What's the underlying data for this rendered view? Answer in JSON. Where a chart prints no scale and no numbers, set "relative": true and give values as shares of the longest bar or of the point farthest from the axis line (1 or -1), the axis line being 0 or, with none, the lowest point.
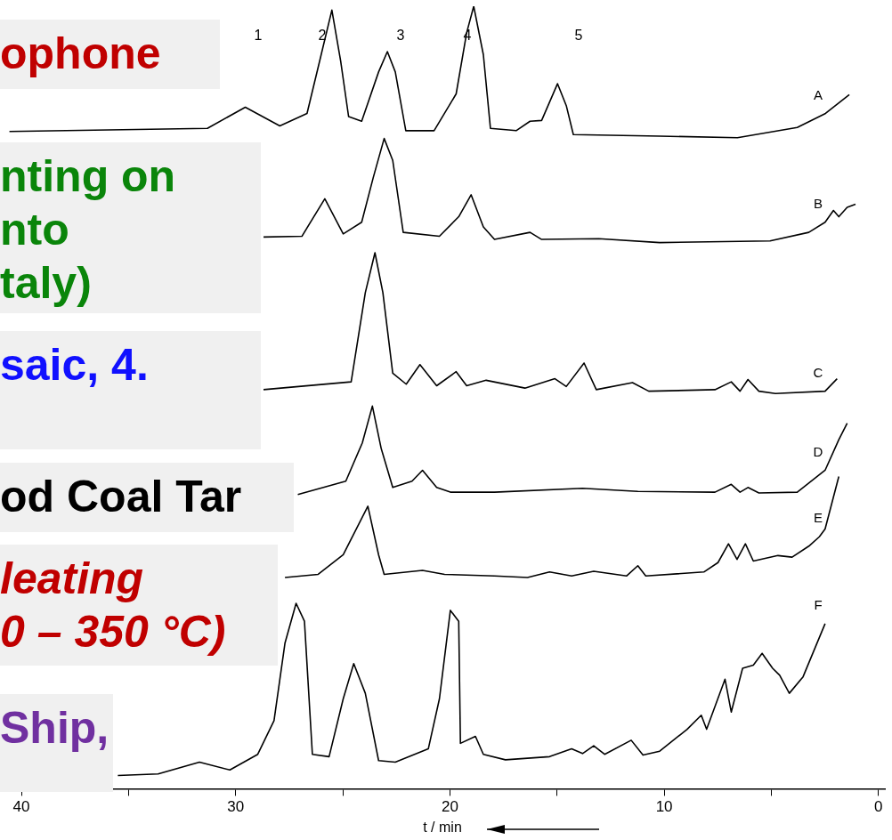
{
  "chart_data": {
    "type": "line",
    "relative": true,
    "xlabel": "t / min",
    "xlim": [
      41,
      -0.3
    ],
    "xticks": [
      40,
      {
        "value": 35,
        "label": null
      },
      30,
      {
        "value": 25,
        "label": null
      },
      20,
      {
        "value": 15,
        "label": null
      },
      10,
      {
        "value": 5,
        "label": null
      },
      0
    ],
    "grid": false,
    "legend": false,
    "marker": "none",
    "line_style": "solid",
    "annotations": [
      "ophone",
      "nting on\nnto\ntaly)",
      "saic, 4.",
      "od Coal Tar",
      "leating\n0 – 350 °C)",
      "Ship,",
      "1",
      "2",
      "3",
      "4",
      "5"
    ],
    "series": [
      {
        "name": "A",
        "color": "#000000",
        "x": [
          40.56,
          31.32,
          29.55,
          27.94,
          26.67,
          26.01,
          25.51,
          25.1,
          24.73,
          24.12,
          23.33,
          22.92,
          22.55,
          22.06,
          20.74,
          19.71,
          19.22,
          18.89,
          18.44,
          18.11,
          16.91,
          16.26,
          15.72,
          14.98,
          14.57,
          14.24,
          10.21,
          6.58,
          3.79,
          2.47,
          1.36
        ],
        "values": [
          0.84,
          0.844,
          0.871,
          0.847,
          0.863,
          0.938,
          0.995,
          0.93,
          0.859,
          0.853,
          0.916,
          0.942,
          0.916,
          0.841,
          0.841,
          0.888,
          0.966,
          1.0,
          0.938,
          0.844,
          0.841,
          0.853,
          0.854,
          0.901,
          0.873,
          0.836,
          0.834,
          0.832,
          0.845,
          0.863,
          0.887
        ]
      },
      {
        "name": "B",
        "color": "#000000",
        "x": [
          28.7,
          26.91,
          25.84,
          24.98,
          24.12,
          23.58,
          23.07,
          22.67,
          22.18,
          20.49,
          19.59,
          19.01,
          18.44,
          17.92,
          16.26,
          15.72,
          13.05,
          10.21,
          5.06,
          3.25,
          2.49,
          2.1,
          1.85,
          1.46,
          1.07
        ],
        "values": [
          0.705,
          0.706,
          0.754,
          0.709,
          0.724,
          0.781,
          0.831,
          0.803,
          0.711,
          0.706,
          0.731,
          0.759,
          0.718,
          0.702,
          0.711,
          0.702,
          0.703,
          0.698,
          0.7,
          0.711,
          0.724,
          0.739,
          0.731,
          0.743,
          0.747
        ]
      },
      {
        "name": "C",
        "color": "#000000",
        "x": [
          28.7,
          24.61,
          23.95,
          23.5,
          23.13,
          22.67,
          22.04,
          21.4,
          20.62,
          19.71,
          19.22,
          18.31,
          16.5,
          15.1,
          14.57,
          13.74,
          13.17,
          11.48,
          10.72,
          7.63,
          6.87,
          6.46,
          6.09,
          5.58,
          4.81,
          2.49,
          1.93
        ],
        "values": [
          0.51,
          0.52,
          0.634,
          0.685,
          0.634,
          0.531,
          0.517,
          0.542,
          0.515,
          0.533,
          0.515,
          0.522,
          0.512,
          0.524,
          0.514,
          0.544,
          0.51,
          0.519,
          0.508,
          0.51,
          0.52,
          0.508,
          0.523,
          0.508,
          0.505,
          0.508,
          0.524
        ]
      },
      {
        "name": "D",
        "color": "#000000",
        "x": [
          27.1,
          24.86,
          24.09,
          23.62,
          23.21,
          22.67,
          21.77,
          21.28,
          20.62,
          19.98,
          17.92,
          13.81,
          11.23,
          7.63,
          6.87,
          6.46,
          6.09,
          5.58,
          3.79,
          2.49,
          1.85,
          1.46
        ],
        "values": [
          0.376,
          0.393,
          0.442,
          0.489,
          0.435,
          0.385,
          0.393,
          0.407,
          0.385,
          0.379,
          0.379,
          0.384,
          0.38,
          0.379,
          0.389,
          0.379,
          0.385,
          0.378,
          0.379,
          0.407,
          0.446,
          0.467
        ]
      },
      {
        "name": "E",
        "color": "#000000",
        "x": [
          27.7,
          26.15,
          24.98,
          23.83,
          23.33,
          23.07,
          21.28,
          20.25,
          17.92,
          16.38,
          15.35,
          14.32,
          13.29,
          11.75,
          11.23,
          10.86,
          8.15,
          7.49,
          7.0,
          6.6,
          6.21,
          5.84,
          4.69,
          4.03,
          3.25,
          2.76,
          2.49,
          1.85
        ],
        "values": [
          0.27,
          0.274,
          0.299,
          0.361,
          0.299,
          0.274,
          0.279,
          0.274,
          0.272,
          0.27,
          0.277,
          0.272,
          0.278,
          0.272,
          0.285,
          0.272,
          0.277,
          0.289,
          0.313,
          0.293,
          0.313,
          0.291,
          0.298,
          0.296,
          0.31,
          0.322,
          0.332,
          0.399
        ]
      },
      {
        "name": "F",
        "color": "#000000",
        "x": [
          35.5,
          33.62,
          31.69,
          30.27,
          28.97,
          28.21,
          27.7,
          27.18,
          26.79,
          26.42,
          25.64,
          24.98,
          24.49,
          23.95,
          23.33,
          22.55,
          21.01,
          20.49,
          19.98,
          19.59,
          19.51,
          18.81,
          18.44,
          17.41,
          15.35,
          14.32,
          13.81,
          13.29,
          12.78,
          11.54,
          10.99,
          10.21,
          8.93,
          8.27,
          8.02,
          7.16,
          6.87,
          6.34,
          5.84,
          5.43,
          4.94,
          4.61,
          4.16,
          3.52,
          2.49
        ],
        "values": [
          0.017,
          0.019,
          0.034,
          0.024,
          0.044,
          0.087,
          0.186,
          0.237,
          0.214,
          0.044,
          0.041,
          0.115,
          0.16,
          0.122,
          0.036,
          0.034,
          0.051,
          0.115,
          0.228,
          0.214,
          0.058,
          0.067,
          0.044,
          0.037,
          0.041,
          0.051,
          0.045,
          0.055,
          0.044,
          0.062,
          0.043,
          0.048,
          0.076,
          0.094,
          0.076,
          0.14,
          0.098,
          0.154,
          0.158,
          0.173,
          0.154,
          0.145,
          0.122,
          0.143,
          0.211
        ]
      }
    ]
  }
}
